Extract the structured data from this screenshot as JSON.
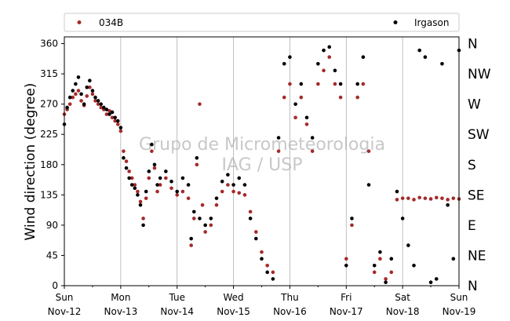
{
  "chart_data": {
    "type": "scatter",
    "title": "",
    "xlabel": "",
    "ylabel": "Wind direction (degree)",
    "ylim": [
      0,
      370
    ],
    "yticks": [
      0,
      45,
      90,
      135,
      180,
      225,
      270,
      315,
      360
    ],
    "xlim_days": [
      12,
      19
    ],
    "xticks": [
      {
        "day": 12,
        "line1": "Sun",
        "line2": "Nov-12"
      },
      {
        "day": 13,
        "line1": "Mon",
        "line2": "Nov-13"
      },
      {
        "day": 14,
        "line1": "Tue",
        "line2": "Nov-14"
      },
      {
        "day": 15,
        "line1": "Wed",
        "line2": "Nov-15"
      },
      {
        "day": 16,
        "line1": "Thu",
        "line2": "Nov-16"
      },
      {
        "day": 17,
        "line1": "Fri",
        "line2": "Nov-17"
      },
      {
        "day": 18,
        "line1": "Sat",
        "line2": "Nov-18"
      },
      {
        "day": 19,
        "line1": "Sun",
        "line2": "Nov-19"
      }
    ],
    "right_labels": [
      {
        "deg": 0,
        "label": "N"
      },
      {
        "deg": 45,
        "label": "NE"
      },
      {
        "deg": 90,
        "label": "E"
      },
      {
        "deg": 135,
        "label": "SE"
      },
      {
        "deg": 180,
        "label": "S"
      },
      {
        "deg": 225,
        "label": "SW"
      },
      {
        "deg": 270,
        "label": "W"
      },
      {
        "deg": 315,
        "label": "NW"
      },
      {
        "deg": 360,
        "label": "N"
      }
    ],
    "grid": "vertical",
    "legend_position": "top",
    "watermark": [
      "Grupo de Micrometeorologia",
      "IAG / USP"
    ],
    "series": [
      {
        "name": "034B",
        "color": "#a52a2a",
        "points": [
          [
            12.0,
            255
          ],
          [
            12.05,
            262
          ],
          [
            12.1,
            270
          ],
          [
            12.15,
            280
          ],
          [
            12.2,
            285
          ],
          [
            12.25,
            290
          ],
          [
            12.3,
            275
          ],
          [
            12.35,
            268
          ],
          [
            12.4,
            282
          ],
          [
            12.45,
            295
          ],
          [
            12.5,
            285
          ],
          [
            12.55,
            275
          ],
          [
            12.6,
            270
          ],
          [
            12.65,
            265
          ],
          [
            12.7,
            262
          ],
          [
            12.75,
            255
          ],
          [
            12.8,
            260
          ],
          [
            12.85,
            250
          ],
          [
            12.9,
            245
          ],
          [
            12.95,
            240
          ],
          [
            13.0,
            230
          ],
          [
            13.05,
            200
          ],
          [
            13.1,
            185
          ],
          [
            13.15,
            170
          ],
          [
            13.2,
            160
          ],
          [
            13.25,
            150
          ],
          [
            13.3,
            140
          ],
          [
            13.35,
            125
          ],
          [
            13.4,
            100
          ],
          [
            13.45,
            130
          ],
          [
            13.5,
            160
          ],
          [
            13.55,
            200
          ],
          [
            13.6,
            175
          ],
          [
            13.65,
            140
          ],
          [
            13.7,
            150
          ],
          [
            13.8,
            160
          ],
          [
            13.9,
            145
          ],
          [
            14.0,
            135
          ],
          [
            14.1,
            140
          ],
          [
            14.2,
            130
          ],
          [
            14.25,
            60
          ],
          [
            14.3,
            100
          ],
          [
            14.35,
            180
          ],
          [
            14.4,
            270
          ],
          [
            14.45,
            120
          ],
          [
            14.5,
            80
          ],
          [
            14.6,
            90
          ],
          [
            14.7,
            120
          ],
          [
            14.8,
            140
          ],
          [
            14.9,
            150
          ],
          [
            15.0,
            140
          ],
          [
            15.1,
            138
          ],
          [
            15.2,
            135
          ],
          [
            15.3,
            110
          ],
          [
            15.4,
            80
          ],
          [
            15.5,
            50
          ],
          [
            15.6,
            30
          ],
          [
            15.7,
            20
          ],
          [
            15.8,
            200
          ],
          [
            15.9,
            280
          ],
          [
            16.0,
            300
          ],
          [
            16.1,
            250
          ],
          [
            16.2,
            280
          ],
          [
            16.3,
            240
          ],
          [
            16.4,
            200
          ],
          [
            16.5,
            300
          ],
          [
            16.6,
            320
          ],
          [
            16.7,
            340
          ],
          [
            16.8,
            300
          ],
          [
            16.9,
            280
          ],
          [
            17.0,
            40
          ],
          [
            17.1,
            90
          ],
          [
            17.2,
            280
          ],
          [
            17.3,
            300
          ],
          [
            17.4,
            200
          ],
          [
            17.5,
            20
          ],
          [
            17.6,
            40
          ],
          [
            17.7,
            10
          ],
          [
            17.8,
            20
          ],
          [
            17.9,
            128
          ],
          [
            18.0,
            130
          ],
          [
            18.1,
            130
          ],
          [
            18.2,
            128
          ],
          [
            18.3,
            131
          ],
          [
            18.4,
            130
          ],
          [
            18.5,
            129
          ],
          [
            18.6,
            131
          ],
          [
            18.7,
            130
          ],
          [
            18.8,
            128
          ],
          [
            18.9,
            130
          ],
          [
            19.0,
            129
          ]
        ]
      },
      {
        "name": "Irgason",
        "color": "#000000",
        "points": [
          [
            12.0,
            240
          ],
          [
            12.05,
            265
          ],
          [
            12.1,
            280
          ],
          [
            12.15,
            290
          ],
          [
            12.2,
            300
          ],
          [
            12.25,
            310
          ],
          [
            12.3,
            285
          ],
          [
            12.35,
            270
          ],
          [
            12.4,
            295
          ],
          [
            12.45,
            305
          ],
          [
            12.5,
            290
          ],
          [
            12.55,
            280
          ],
          [
            12.6,
            275
          ],
          [
            12.65,
            270
          ],
          [
            12.7,
            265
          ],
          [
            12.75,
            262
          ],
          [
            12.8,
            255
          ],
          [
            12.85,
            258
          ],
          [
            12.9,
            250
          ],
          [
            12.95,
            245
          ],
          [
            13.0,
            235
          ],
          [
            13.05,
            190
          ],
          [
            13.1,
            175
          ],
          [
            13.15,
            160
          ],
          [
            13.2,
            150
          ],
          [
            13.25,
            145
          ],
          [
            13.3,
            135
          ],
          [
            13.35,
            120
          ],
          [
            13.4,
            90
          ],
          [
            13.45,
            140
          ],
          [
            13.5,
            170
          ],
          [
            13.55,
            210
          ],
          [
            13.6,
            180
          ],
          [
            13.65,
            150
          ],
          [
            13.7,
            160
          ],
          [
            13.8,
            170
          ],
          [
            13.9,
            155
          ],
          [
            14.0,
            140
          ],
          [
            14.1,
            160
          ],
          [
            14.2,
            150
          ],
          [
            14.25,
            70
          ],
          [
            14.3,
            110
          ],
          [
            14.35,
            190
          ],
          [
            14.4,
            100
          ],
          [
            14.5,
            90
          ],
          [
            14.6,
            100
          ],
          [
            14.7,
            130
          ],
          [
            14.8,
            155
          ],
          [
            14.9,
            165
          ],
          [
            15.0,
            150
          ],
          [
            15.1,
            160
          ],
          [
            15.2,
            150
          ],
          [
            15.3,
            100
          ],
          [
            15.4,
            70
          ],
          [
            15.5,
            40
          ],
          [
            15.6,
            20
          ],
          [
            15.7,
            10
          ],
          [
            15.8,
            220
          ],
          [
            15.9,
            330
          ],
          [
            16.0,
            340
          ],
          [
            16.1,
            270
          ],
          [
            16.2,
            300
          ],
          [
            16.3,
            250
          ],
          [
            16.4,
            220
          ],
          [
            16.5,
            330
          ],
          [
            16.6,
            350
          ],
          [
            16.7,
            355
          ],
          [
            16.8,
            320
          ],
          [
            16.9,
            300
          ],
          [
            17.0,
            30
          ],
          [
            17.1,
            100
          ],
          [
            17.2,
            300
          ],
          [
            17.3,
            340
          ],
          [
            17.4,
            150
          ],
          [
            17.5,
            30
          ],
          [
            17.6,
            50
          ],
          [
            17.7,
            5
          ],
          [
            17.8,
            40
          ],
          [
            17.9,
            140
          ],
          [
            18.0,
            100
          ],
          [
            18.1,
            60
          ],
          [
            18.2,
            30
          ],
          [
            18.3,
            350
          ],
          [
            18.4,
            340
          ],
          [
            18.5,
            5
          ],
          [
            18.6,
            10
          ],
          [
            18.7,
            330
          ],
          [
            18.8,
            120
          ],
          [
            18.9,
            40
          ],
          [
            19.0,
            350
          ]
        ]
      }
    ]
  }
}
